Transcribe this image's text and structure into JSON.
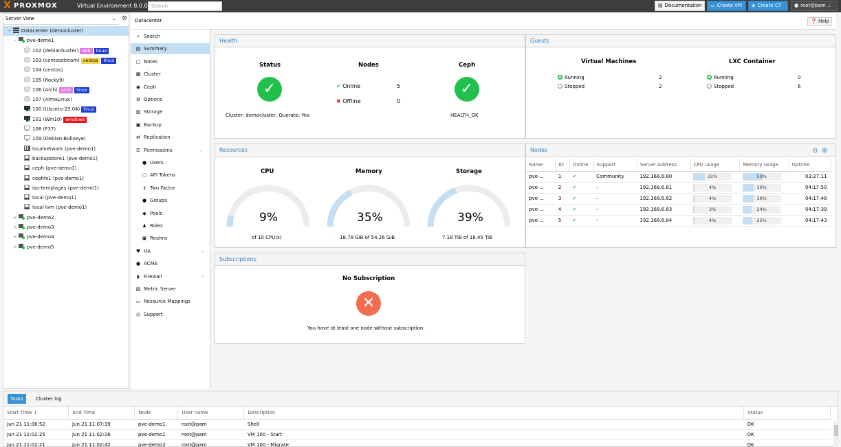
{
  "topbar": {
    "logo_x": "X",
    "logo_text": "PROXMOX",
    "product": "Virtual Environment 8.0.0",
    "search_placeholder": "Search",
    "documentation": "Documentation",
    "create_vm": "Create VM",
    "create_ct": "Create CT",
    "user": "root@pam"
  },
  "left": {
    "view": "Server View",
    "tree": [
      {
        "label": "Datacenter (democluster)",
        "icon": "datacenter-icon",
        "level": 0,
        "selected": true
      },
      {
        "label": "pve-demo1",
        "icon": "node-online-icon",
        "level": 1
      },
      {
        "label": "102 (debianbuster)",
        "icon": "container-icon",
        "level": 2,
        "tags": [
          {
            "t": "deb",
            "bg": "#e07be0"
          },
          {
            "t": "linux",
            "bg": "#1e3fd1"
          }
        ]
      },
      {
        "label": "103 (centosstream)",
        "icon": "container-icon",
        "level": 2,
        "tags": [
          {
            "t": "centos",
            "bg": "#f2d64b"
          },
          {
            "t": "linux",
            "bg": "#1e3fd1"
          }
        ]
      },
      {
        "label": "104 (centos)",
        "icon": "container-icon",
        "level": 2
      },
      {
        "label": "105 (Rocky9)",
        "icon": "container-icon",
        "level": 2
      },
      {
        "label": "106 (Arch)",
        "icon": "container-icon",
        "level": 2,
        "tags": [
          {
            "t": "arch",
            "bg": "#e07be0"
          },
          {
            "t": "linux",
            "bg": "#1e3fd1"
          }
        ]
      },
      {
        "label": "107 (AlmaLinux)",
        "icon": "container-icon",
        "level": 2
      },
      {
        "label": "100 (Ubuntu-23.04)",
        "icon": "vm-running-icon",
        "level": 2,
        "tags": [
          {
            "t": "linux",
            "bg": "#1e3fd1"
          }
        ]
      },
      {
        "label": "101 (Win10)",
        "icon": "vm-running-icon",
        "level": 2,
        "tags": [
          {
            "t": "windows",
            "bg": "#e8141c"
          }
        ]
      },
      {
        "label": "108 (F37)",
        "icon": "vm-stopped-icon",
        "level": 2
      },
      {
        "label": "109 (Debian-Bullseye)",
        "icon": "vm-stopped-icon",
        "level": 2
      },
      {
        "label": "localnetwork (pve-demo1)",
        "icon": "network-icon",
        "level": 2
      },
      {
        "label": "backupstore1 (pve-demo1)",
        "icon": "storage-icon",
        "level": 2
      },
      {
        "label": "ceph (pve-demo1)",
        "icon": "storage-icon",
        "level": 2
      },
      {
        "label": "cephfs1 (pve-demo1)",
        "icon": "storage-icon",
        "level": 2
      },
      {
        "label": "iso-templages (pve-demo1)",
        "icon": "storage-icon",
        "level": 2
      },
      {
        "label": "local (pve-demo1)",
        "icon": "storage-icon",
        "level": 2
      },
      {
        "label": "local-lvm (pve-demo1)",
        "icon": "storage-icon",
        "level": 2
      },
      {
        "label": "pve-demo2",
        "icon": "node-online-icon",
        "level": 1
      },
      {
        "label": "pve-demo3",
        "icon": "node-online-icon",
        "level": 1
      },
      {
        "label": "pve-demo4",
        "icon": "node-online-icon",
        "level": 1
      },
      {
        "label": "pve-demo5",
        "icon": "node-online-icon",
        "level": 1
      }
    ]
  },
  "breadcrumb": "Datacenter",
  "help": "Help",
  "nav": [
    {
      "label": "Search",
      "icon": "search-icon",
      "glyph": "⌕",
      "sub": false
    },
    {
      "label": "Summary",
      "icon": "book-icon",
      "glyph": "▤",
      "sub": false,
      "selected": true
    },
    {
      "label": "Notes",
      "icon": "notes-icon",
      "glyph": "▢",
      "sub": false
    },
    {
      "label": "Cluster",
      "icon": "server-icon",
      "glyph": "▦",
      "sub": false
    },
    {
      "label": "Ceph",
      "icon": "ceph-icon",
      "glyph": "◉",
      "sub": false
    },
    {
      "label": "Options",
      "icon": "gear-icon",
      "glyph": "⚙",
      "sub": false
    },
    {
      "label": "Storage",
      "icon": "database-icon",
      "glyph": "▥",
      "sub": false
    },
    {
      "label": "Backup",
      "icon": "floppy-icon",
      "glyph": "▣",
      "sub": false
    },
    {
      "label": "Replication",
      "icon": "retweet-icon",
      "glyph": "⇄",
      "sub": false
    },
    {
      "label": "Permissions",
      "icon": "unlock-icon",
      "glyph": "⚿",
      "sub": false,
      "arrow": "⌄"
    },
    {
      "label": "Users",
      "icon": "user-icon",
      "glyph": "●",
      "sub": true
    },
    {
      "label": "API Tokens",
      "icon": "user-outline-icon",
      "glyph": "○",
      "sub": true
    },
    {
      "label": "Two Factor",
      "icon": "key-icon",
      "glyph": "⚷",
      "sub": true
    },
    {
      "label": "Groups",
      "icon": "users-icon",
      "glyph": "●",
      "sub": true
    },
    {
      "label": "Pools",
      "icon": "tags-icon",
      "glyph": "◆",
      "sub": true
    },
    {
      "label": "Roles",
      "icon": "male-icon",
      "glyph": "♟",
      "sub": true
    },
    {
      "label": "Realms",
      "icon": "address-book-icon",
      "glyph": "▣",
      "sub": true
    },
    {
      "label": "HA",
      "icon": "heartbeat-icon",
      "glyph": "♥",
      "sub": false,
      "arrow": "›"
    },
    {
      "label": "ACME",
      "icon": "certificate-icon",
      "glyph": "●",
      "sub": false
    },
    {
      "label": "Firewall",
      "icon": "shield-icon",
      "glyph": "◗",
      "sub": false,
      "arrow": "›"
    },
    {
      "label": "Metric Server",
      "icon": "bar-chart-icon",
      "glyph": "▨",
      "sub": false
    },
    {
      "label": "Resource Mappings",
      "icon": "folder-icon",
      "glyph": "▭",
      "sub": false
    },
    {
      "label": "Support",
      "icon": "life-ring-icon",
      "glyph": "◎",
      "sub": false
    }
  ],
  "health": {
    "title": "Health",
    "status_h": "Status",
    "nodes_h": "Nodes",
    "ceph_h": "Ceph",
    "online_label": "Online",
    "online": "5",
    "offline_label": "Offline",
    "offline": "0",
    "cluster_info": "Cluster: democluster, Quorate: Yes",
    "ceph_status": "HEALTH_OK"
  },
  "guests": {
    "title": "Guests",
    "vm_h": "Virtual Machines",
    "lxc_h": "LXC Container",
    "running_label": "Running",
    "stopped_label": "Stopped",
    "vm_running": "2",
    "vm_stopped": "2",
    "lxc_running": "0",
    "lxc_stopped": "6"
  },
  "resources": {
    "title": "Resources",
    "cpu_h": "CPU",
    "mem_h": "Memory",
    "storage_h": "Storage",
    "cpu_pct": "9%",
    "mem_pct": "35%",
    "storage_pct": "39%",
    "cpu_frac": 0.09,
    "mem_frac": 0.35,
    "storage_frac": 0.39,
    "cpu_sub": "of 10 CPU(s)",
    "mem_sub": "18.78 GiB of 54.26 GiB",
    "storage_sub": "7.18 TiB of 18.45 TiB"
  },
  "nodes_panel": {
    "title": "Nodes",
    "cols": [
      "Name",
      "ID",
      "Online",
      "Support",
      "Server Address",
      "CPU usage",
      "Memory usage",
      "Uptime"
    ],
    "rows": [
      {
        "name": "pve-...",
        "id": "1",
        "online": "✔",
        "support": "Community",
        "addr": "192.168.6.80",
        "cpu": "31%",
        "cpu_f": 0.31,
        "mem": "53%",
        "mem_f": 0.53,
        "uptime": "03:27:11"
      },
      {
        "name": "pve-...",
        "id": "2",
        "online": "✔",
        "support": "-",
        "addr": "192.168.6.81",
        "cpu": "4%",
        "cpu_f": 0.04,
        "mem": "30%",
        "mem_f": 0.3,
        "uptime": "04:17:50"
      },
      {
        "name": "pve-...",
        "id": "3",
        "online": "✔",
        "support": "-",
        "addr": "192.168.6.82",
        "cpu": "4%",
        "cpu_f": 0.04,
        "mem": "30%",
        "mem_f": 0.3,
        "uptime": "04:17:48"
      },
      {
        "name": "pve-...",
        "id": "4",
        "online": "✔",
        "support": "-",
        "addr": "192.168.6.83",
        "cpu": "3%",
        "cpu_f": 0.03,
        "mem": "24%",
        "mem_f": 0.24,
        "uptime": "04:17:39"
      },
      {
        "name": "pve-...",
        "id": "5",
        "online": "✔",
        "support": "-",
        "addr": "192.168.6.84",
        "cpu": "4%",
        "cpu_f": 0.04,
        "mem": "25%",
        "mem_f": 0.25,
        "uptime": "04:17:43"
      }
    ]
  },
  "subscriptions": {
    "title": "Subscriptions",
    "heading": "No Subscription",
    "text": "You have at least one node without subscription."
  },
  "bottom": {
    "tab_tasks": "Tasks",
    "tab_log": "Cluster log",
    "cols": [
      "Start Time ↓",
      "End Time",
      "Node",
      "User name",
      "Description",
      "Status"
    ],
    "rows": [
      {
        "start": "Jun 21 11:06:52",
        "end": "Jun 21 11:07:39",
        "node": "pve-demo1",
        "user": "root@pam",
        "desc": "Shell",
        "status": "OK"
      },
      {
        "start": "Jun 21 11:02:25",
        "end": "Jun 21 11:02:26",
        "node": "pve-demo1",
        "user": "root@pam",
        "desc": "VM 100 - Start",
        "status": "OK"
      },
      {
        "start": "Jun 21 11:02:21",
        "end": "Jun 21 11:02:42",
        "node": "pve-demo2",
        "user": "root@pam",
        "desc": "VM 100 - Migrate",
        "status": "OK"
      }
    ]
  }
}
